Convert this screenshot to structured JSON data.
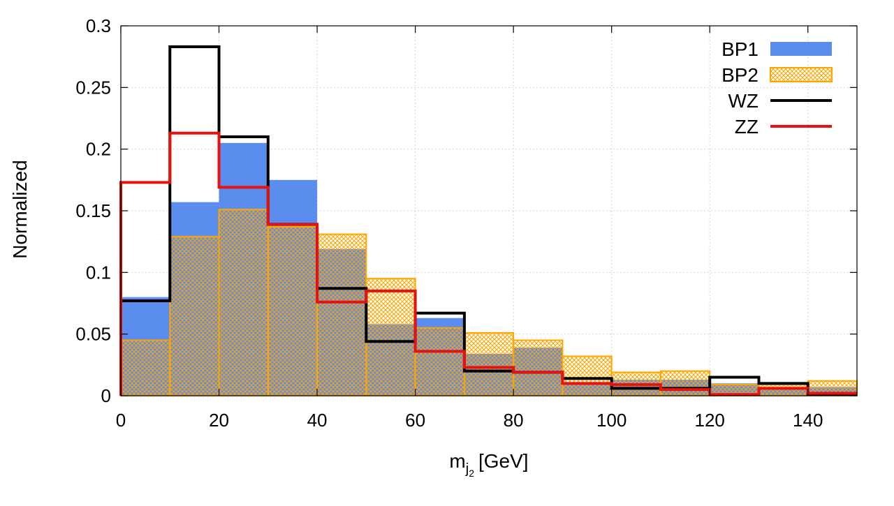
{
  "chart_data": {
    "type": "bar",
    "title": "",
    "xlabel": "m",
    "xlabel_sub": "j",
    "xlabel_subsub": "2",
    "xlabel_unit": "[GeV]",
    "ylabel": "Normalized",
    "xlim": [
      0,
      150
    ],
    "ylim": [
      0,
      0.3
    ],
    "x_ticks": [
      0,
      20,
      40,
      60,
      80,
      100,
      120,
      140
    ],
    "y_ticks": [
      0,
      0.05,
      0.1,
      0.15,
      0.2,
      0.25,
      0.3
    ],
    "y_tick_labels": [
      "0",
      "0.05",
      "0.1",
      "0.15",
      "0.2",
      "0.25",
      "0.3"
    ],
    "grid": true,
    "legend_position": "top-right",
    "bin_edges": [
      0,
      10,
      20,
      30,
      40,
      50,
      60,
      70,
      80,
      90,
      100,
      110,
      120,
      130,
      140,
      150
    ],
    "series": [
      {
        "name": "BP1",
        "style": "filled",
        "color": "#5b8def",
        "values": [
          0.08,
          0.157,
          0.205,
          0.175,
          0.119,
          0.058,
          0.063,
          0.034,
          0.039,
          0.011,
          0.013,
          0.013,
          0.01,
          0.007,
          0.007
        ]
      },
      {
        "name": "BP2",
        "style": "hatched",
        "color": "#ffa500",
        "values": [
          0.045,
          0.129,
          0.151,
          0.137,
          0.131,
          0.095,
          0.055,
          0.051,
          0.045,
          0.032,
          0.019,
          0.02,
          0.009,
          0.009,
          0.012
        ]
      },
      {
        "name": "WZ",
        "style": "step",
        "color": "#000000",
        "values": [
          0.077,
          0.283,
          0.21,
          0.139,
          0.087,
          0.044,
          0.067,
          0.02,
          0.019,
          0.014,
          0.006,
          0.006,
          0.015,
          0.01,
          0.001
        ]
      },
      {
        "name": "ZZ",
        "style": "step",
        "color": "#e8120c",
        "values": [
          0.173,
          0.213,
          0.169,
          0.139,
          0.076,
          0.085,
          0.036,
          0.023,
          0.019,
          0.01,
          0.009,
          0.005,
          0.001,
          0.006,
          0.002
        ]
      }
    ]
  }
}
